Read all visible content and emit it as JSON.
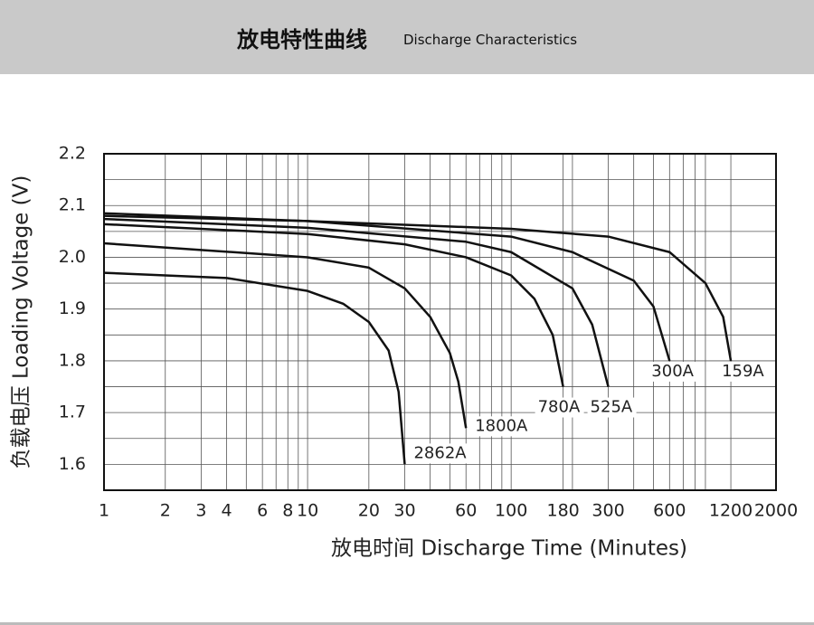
{
  "header": {
    "title": "放电特性曲线",
    "subtitle": "Discharge Characteristics"
  },
  "chart_data": {
    "type": "line",
    "x_label": "放电时间 Discharge Time (Minutes)",
    "y_label": "负载电压 Loading Voltage (V)",
    "x_log": true,
    "xlim": [
      1,
      2000
    ],
    "xticks": [
      1,
      2,
      3,
      4,
      6,
      8,
      10,
      20,
      30,
      60,
      100,
      180,
      300,
      600,
      1200,
      2000
    ],
    "x_minor_grid": [
      5,
      7,
      9,
      40,
      50,
      70,
      80,
      90,
      200,
      400,
      500,
      700,
      800,
      900
    ],
    "ylim": [
      1.55,
      2.2
    ],
    "yticks": [
      1.6,
      1.7,
      1.8,
      1.9,
      {
        "value": 2,
        "label": "2.0"
      },
      2.1,
      2.2
    ],
    "y_minor_grid": [
      1.65,
      1.75,
      1.85,
      1.95,
      2.05,
      2.15
    ],
    "grid": true,
    "series": [
      {
        "name": "2862A",
        "color": "#111111",
        "x": [
          1,
          4,
          10,
          15,
          20,
          25,
          28,
          30
        ],
        "values": [
          1.97,
          1.96,
          1.935,
          1.91,
          1.875,
          1.82,
          1.74,
          1.6
        ]
      },
      {
        "name": "1800A",
        "color": "#111111",
        "x": [
          1,
          10,
          20,
          30,
          40,
          50,
          55,
          60
        ],
        "values": [
          2.027,
          2.0,
          1.98,
          1.94,
          1.885,
          1.815,
          1.76,
          1.67
        ]
      },
      {
        "name": "780A",
        "color": "#111111",
        "x": [
          1,
          10,
          30,
          60,
          100,
          130,
          160,
          180
        ],
        "values": [
          2.064,
          2.045,
          2.025,
          2.0,
          1.965,
          1.92,
          1.85,
          1.75
        ]
      },
      {
        "name": "525A",
        "color": "#111111",
        "x": [
          1,
          10,
          60,
          100,
          200,
          250,
          300
        ],
        "values": [
          2.074,
          2.057,
          2.03,
          2.01,
          1.94,
          1.87,
          1.75
        ]
      },
      {
        "name": "300A",
        "color": "#111111",
        "x": [
          1,
          10,
          100,
          200,
          400,
          500,
          600
        ],
        "values": [
          2.08,
          2.07,
          2.04,
          2.01,
          1.955,
          1.905,
          1.8
        ]
      },
      {
        "name": "159A",
        "color": "#111111",
        "x": [
          1,
          100,
          300,
          600,
          900,
          1100,
          1200
        ],
        "values": [
          2.085,
          2.055,
          2.04,
          2.01,
          1.95,
          1.885,
          1.8
        ]
      }
    ]
  }
}
